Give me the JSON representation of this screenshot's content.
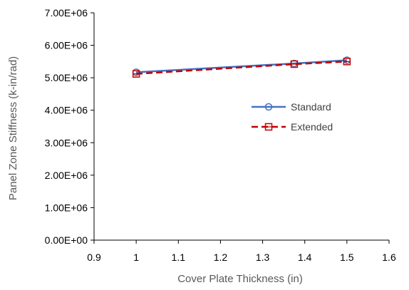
{
  "chart_data": {
    "type": "line",
    "title": "",
    "xlabel": "Cover Plate Thickness (in)",
    "ylabel": "Panel Zone Stiffness (k-in/rad)",
    "xlim": [
      0.9,
      1.6
    ],
    "ylim": [
      0,
      7000000
    ],
    "x_ticks": [
      "0.9",
      "1",
      "1.1",
      "1.2",
      "1.3",
      "1.4",
      "1.5",
      "1.6"
    ],
    "y_ticks": [
      "0.00E+00",
      "1.00E+06",
      "2.00E+06",
      "3.00E+06",
      "4.00E+06",
      "5.00E+06",
      "6.00E+06",
      "7.00E+06"
    ],
    "grid": false,
    "legend_position": "right",
    "series": [
      {
        "name": "Standard",
        "x": [
          1,
          1.375,
          1.5
        ],
        "values": [
          5170000,
          5440000,
          5540000
        ],
        "color": "#4472C4",
        "line_style": "solid",
        "marker": "circle"
      },
      {
        "name": "Extended",
        "x": [
          1,
          1.375,
          1.5
        ],
        "values": [
          5120000,
          5420000,
          5500000
        ],
        "color": "#C00000",
        "line_style": "dashed",
        "marker": "square"
      }
    ]
  }
}
